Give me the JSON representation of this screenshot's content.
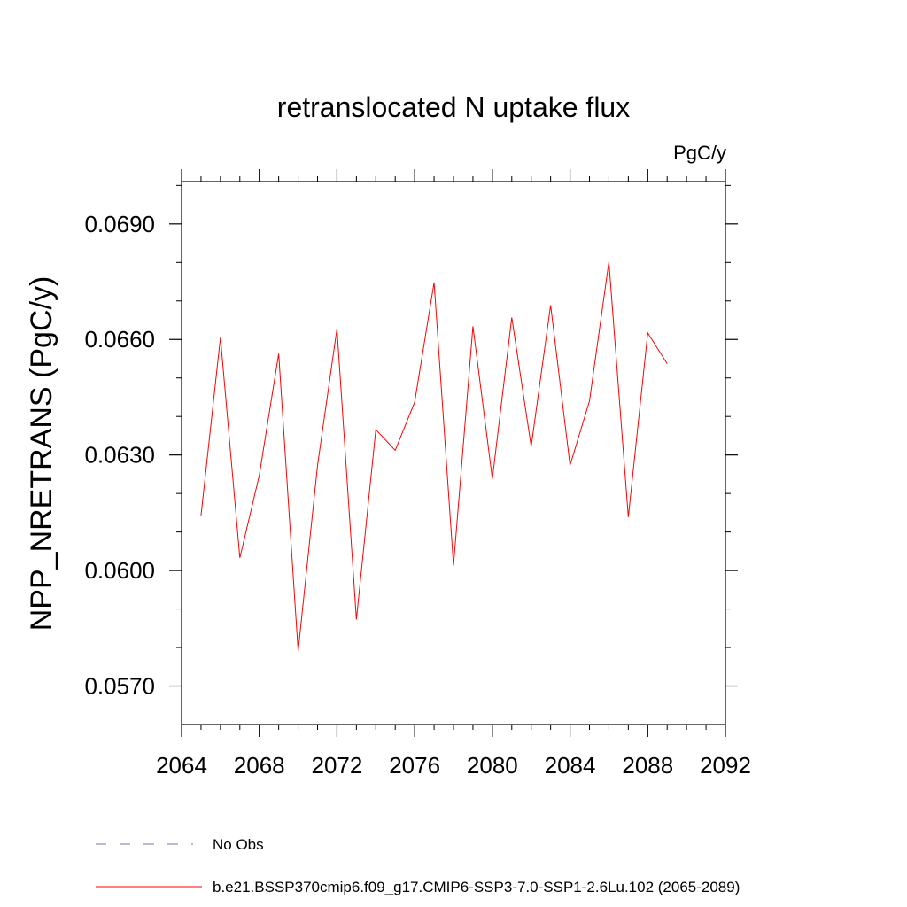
{
  "chart_data": {
    "type": "line",
    "title": "retranslocated N uptake flux",
    "units_label": "PgC/y",
    "xlabel": "",
    "ylabel": "NPP_NRETRANS  (PgC/y)",
    "xlim": [
      2064,
      2092
    ],
    "ylim": [
      0.056,
      0.0701
    ],
    "x_ticks": [
      2064,
      2068,
      2072,
      2076,
      2080,
      2084,
      2088,
      2092
    ],
    "x_tick_labels": [
      "2064",
      "2068",
      "2072",
      "2076",
      "2080",
      "2084",
      "2088",
      "2092"
    ],
    "y_ticks": [
      0.057,
      0.06,
      0.063,
      0.066,
      0.069
    ],
    "y_tick_labels": [
      "0.0570",
      "0.0600",
      "0.0630",
      "0.0660",
      "0.0690"
    ],
    "y_minor_step": 0.001,
    "grid": false,
    "legend_position": "bottom-left, below plot",
    "series": [
      {
        "name": "b.e21.BSSP370cmip6.f09_g17.CMIP6-SSP3-7.0-SSP1-2.6Lu.102 (2065-2089)",
        "color": "#ff0000",
        "style": "solid",
        "x": [
          2065,
          2066,
          2067,
          2068,
          2069,
          2070,
          2071,
          2072,
          2073,
          2074,
          2075,
          2076,
          2077,
          2078,
          2079,
          2080,
          2081,
          2082,
          2083,
          2084,
          2085,
          2086,
          2087,
          2088,
          2089
        ],
        "values": [
          0.06143,
          0.06605,
          0.06033,
          0.06247,
          0.06563,
          0.0579,
          0.06273,
          0.06628,
          0.05873,
          0.06366,
          0.06312,
          0.06437,
          0.06748,
          0.06013,
          0.06634,
          0.06238,
          0.06657,
          0.06322,
          0.06689,
          0.06273,
          0.0644,
          0.06802,
          0.06139,
          0.06617,
          0.06537
        ]
      }
    ],
    "legend": [
      {
        "label": "No Obs",
        "color": "#7f6fb0",
        "style": "dashed"
      },
      {
        "label": "b.e21.BSSP370cmip6.f09_g17.CMIP6-SSP3-7.0-SSP1-2.6Lu.102 (2065-2089)",
        "color": "#ff0000",
        "style": "solid"
      }
    ]
  }
}
